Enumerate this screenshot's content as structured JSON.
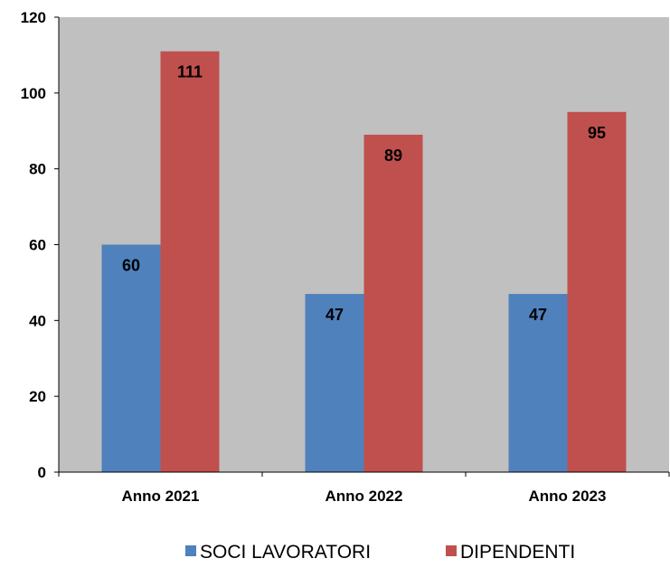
{
  "chart_data": {
    "type": "bar",
    "categories": [
      "Anno 2021",
      "Anno 2022",
      "Anno 2023"
    ],
    "series": [
      {
        "name": "SOCI LAVORATORI",
        "values": [
          60,
          47,
          47
        ],
        "color": "#4f81bd"
      },
      {
        "name": "DIPENDENTI",
        "values": [
          111,
          89,
          95
        ],
        "color": "#c0504d"
      }
    ],
    "ylim": [
      0,
      120
    ],
    "yticks": [
      0,
      20,
      40,
      60,
      80,
      100,
      120
    ],
    "grid": false,
    "plot_background": "#c0c0c0",
    "legend_position": "bottom",
    "data_labels": true
  }
}
